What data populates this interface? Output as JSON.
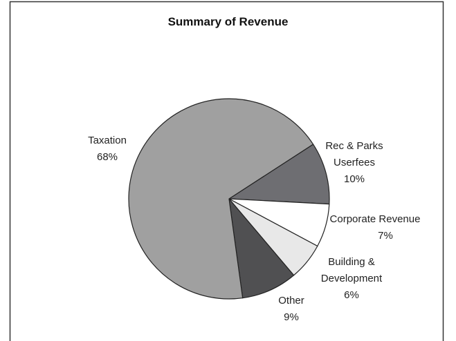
{
  "chart_data": {
    "type": "pie",
    "title": "Summary of Revenue",
    "categories": [
      "Rec & Parks Userfees",
      "Corporate Revenue",
      "Building & Development",
      "Other",
      "Taxation"
    ],
    "values": [
      10,
      7,
      6,
      9,
      68
    ],
    "value_labels": [
      "10%",
      "7%",
      "6%",
      "9%",
      "68%"
    ],
    "colors": [
      "#6e6e72",
      "#ffffff",
      "#e8e8e8",
      "#505052",
      "#a0a0a0"
    ]
  }
}
